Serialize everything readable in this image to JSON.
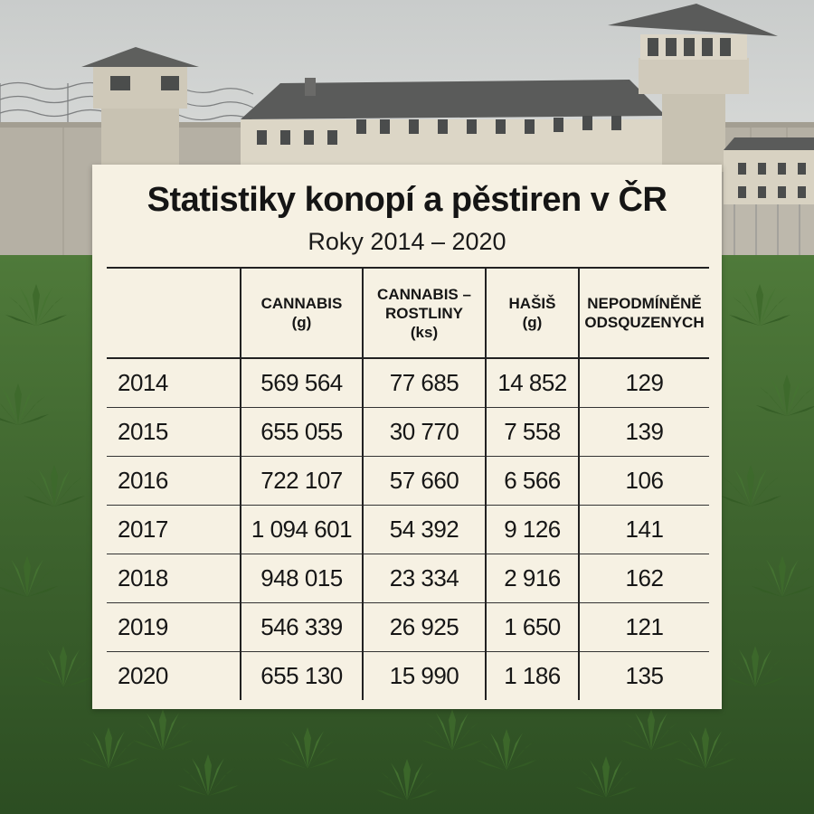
{
  "title": "Statistiky konopí a pěstiren v ČR",
  "subtitle": "Roky 2014 – 2020",
  "table": {
    "headers": [
      {
        "lines": [
          ""
        ]
      },
      {
        "lines": [
          "CANNABIS",
          "(g)"
        ]
      },
      {
        "lines": [
          "CANNABIS –",
          "ROSTLINY",
          "(ks)"
        ]
      },
      {
        "lines": [
          "HAŠIŠ",
          "(g)"
        ]
      },
      {
        "lines": [
          "NEPODMÍNĚNĚ",
          "ODSQUZENYCH"
        ]
      }
    ],
    "rows": [
      {
        "year": "2014",
        "cannabis_g": "569 564",
        "plants_ks": "77 685",
        "hasis_g": "14 852",
        "sentenced": "129"
      },
      {
        "year": "2015",
        "cannabis_g": "655 055",
        "plants_ks": "30 770",
        "hasis_g": "7 558",
        "sentenced": "139"
      },
      {
        "year": "2016",
        "cannabis_g": "722 107",
        "plants_ks": "57 660",
        "hasis_g": "6 566",
        "sentenced": "106"
      },
      {
        "year": "2017",
        "cannabis_g": "1 094 601",
        "plants_ks": "54 392",
        "hasis_g": "9 126",
        "sentenced": "141"
      },
      {
        "year": "2018",
        "cannabis_g": "948 015",
        "plants_ks": "23 334",
        "hasis_g": "2 916",
        "sentenced": "162"
      },
      {
        "year": "2019",
        "cannabis_g": "546 339",
        "plants_ks": "26 925",
        "hasis_g": "1 650",
        "sentenced": "121"
      },
      {
        "year": "2020",
        "cannabis_g": "655 130",
        "plants_ks": "15 990",
        "hasis_g": "1 186",
        "sentenced": "135"
      }
    ]
  },
  "colors": {
    "sky": "#d6d8d7",
    "wall": "#b9b4a8",
    "building": "#ded8c8",
    "roof": "#5b5c5b",
    "plants": "#3f6b2e",
    "panel": "#f6f1e3",
    "text": "#161616"
  }
}
